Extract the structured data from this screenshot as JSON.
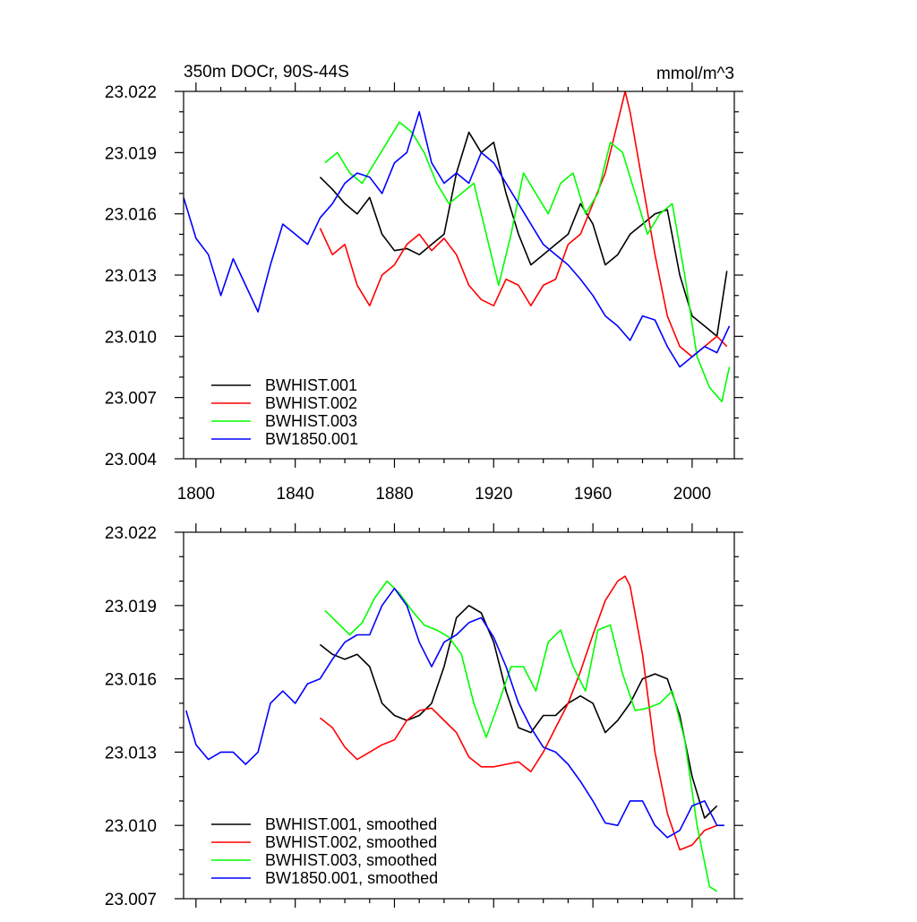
{
  "chart_data": [
    {
      "type": "line",
      "title": "350m DOCr, 90S-44S",
      "units": "mmol/m^3",
      "xlim": [
        1795,
        2017
      ],
      "ylim": [
        23.004,
        23.022
      ],
      "xticks": [
        1800,
        1840,
        1880,
        1920,
        1960,
        2000
      ],
      "yticks": [
        23.004,
        23.007,
        23.01,
        23.013,
        23.016,
        23.019,
        23.022
      ],
      "legend_position": "bottom-left",
      "grid": false,
      "series": [
        {
          "name": "BWHIST.001",
          "color": "#000000",
          "x": [
            1850,
            1855,
            1860,
            1865,
            1870,
            1875,
            1880,
            1885,
            1890,
            1895,
            1900,
            1905,
            1910,
            1915,
            1920,
            1925,
            1930,
            1935,
            1940,
            1945,
            1950,
            1955,
            1960,
            1965,
            1970,
            1975,
            1980,
            1985,
            1990,
            1995,
            2000,
            2005,
            2010,
            2014
          ],
          "y": [
            23.0178,
            23.0172,
            23.0165,
            23.016,
            23.0168,
            23.015,
            23.0142,
            23.0143,
            23.014,
            23.0145,
            23.015,
            23.018,
            23.02,
            23.019,
            23.0195,
            23.017,
            23.015,
            23.0135,
            23.014,
            23.0145,
            23.015,
            23.0165,
            23.0155,
            23.0135,
            23.014,
            23.015,
            23.0155,
            23.016,
            23.0162,
            23.013,
            23.011,
            23.0105,
            23.01,
            23.0132
          ]
        },
        {
          "name": "BWHIST.002",
          "color": "#ff0000",
          "x": [
            1850,
            1855,
            1860,
            1865,
            1870,
            1875,
            1880,
            1885,
            1890,
            1895,
            1900,
            1905,
            1910,
            1915,
            1920,
            1925,
            1930,
            1935,
            1940,
            1945,
            1950,
            1955,
            1960,
            1965,
            1970,
            1973,
            1975,
            1980,
            1985,
            1990,
            1995,
            2000,
            2005,
            2010,
            2014
          ],
          "y": [
            23.0153,
            23.014,
            23.0145,
            23.0125,
            23.0115,
            23.013,
            23.0135,
            23.0145,
            23.015,
            23.0142,
            23.0148,
            23.014,
            23.0125,
            23.0118,
            23.0115,
            23.0128,
            23.0125,
            23.0115,
            23.0125,
            23.0128,
            23.0145,
            23.015,
            23.0165,
            23.018,
            23.0205,
            23.022,
            23.021,
            23.0175,
            23.014,
            23.011,
            23.0095,
            23.009,
            23.0095,
            23.01,
            23.0095
          ]
        },
        {
          "name": "BWHIST.003",
          "color": "#00ff00",
          "x": [
            1852,
            1857,
            1862,
            1867,
            1872,
            1877,
            1882,
            1887,
            1892,
            1897,
            1902,
            1907,
            1912,
            1917,
            1922,
            1927,
            1932,
            1937,
            1942,
            1947,
            1952,
            1957,
            1962,
            1967,
            1972,
            1977,
            1982,
            1987,
            1992,
            1997,
            2002,
            2007,
            2012,
            2015
          ],
          "y": [
            23.0185,
            23.019,
            23.018,
            23.0175,
            23.0185,
            23.0195,
            23.0205,
            23.02,
            23.019,
            23.0175,
            23.0165,
            23.017,
            23.0175,
            23.015,
            23.0125,
            23.015,
            23.018,
            23.017,
            23.016,
            23.0175,
            23.018,
            23.016,
            23.017,
            23.0195,
            23.019,
            23.017,
            23.015,
            23.016,
            23.0165,
            23.013,
            23.009,
            23.0075,
            23.0068,
            23.0085
          ]
        },
        {
          "name": "BW1850.001",
          "color": "#0000ff",
          "x": [
            1795,
            1800,
            1805,
            1810,
            1815,
            1820,
            1825,
            1830,
            1835,
            1840,
            1845,
            1850,
            1855,
            1860,
            1865,
            1870,
            1875,
            1880,
            1885,
            1890,
            1895,
            1900,
            1905,
            1910,
            1915,
            1920,
            1925,
            1930,
            1935,
            1940,
            1945,
            1950,
            1955,
            1960,
            1965,
            1970,
            1975,
            1980,
            1985,
            1990,
            1995,
            2000,
            2005,
            2010,
            2015
          ],
          "y": [
            23.0168,
            23.0148,
            23.014,
            23.012,
            23.0138,
            23.0125,
            23.0112,
            23.0135,
            23.0155,
            23.015,
            23.0145,
            23.0158,
            23.0165,
            23.0175,
            23.018,
            23.0178,
            23.017,
            23.0185,
            23.019,
            23.021,
            23.0185,
            23.0175,
            23.018,
            23.0175,
            23.019,
            23.0185,
            23.0175,
            23.0165,
            23.0155,
            23.0145,
            23.014,
            23.0135,
            23.0128,
            23.012,
            23.011,
            23.0105,
            23.0098,
            23.011,
            23.0108,
            23.0095,
            23.0085,
            23.009,
            23.0095,
            23.0092,
            23.0105
          ]
        }
      ]
    },
    {
      "type": "line",
      "title": "",
      "xlim": [
        1795,
        2017
      ],
      "ylim": [
        23.007,
        23.022
      ],
      "xticks": [
        1800,
        1840,
        1880,
        1920,
        1960,
        2000
      ],
      "yticks": [
        23.007,
        23.01,
        23.013,
        23.016,
        23.019,
        23.022
      ],
      "legend_position": "bottom-left",
      "grid": false,
      "series": [
        {
          "name": "BWHIST.001, smoothed",
          "color": "#000000",
          "x": [
            1850,
            1855,
            1860,
            1865,
            1870,
            1875,
            1880,
            1885,
            1890,
            1895,
            1900,
            1905,
            1910,
            1915,
            1920,
            1925,
            1930,
            1935,
            1940,
            1945,
            1950,
            1955,
            1960,
            1965,
            1970,
            1975,
            1980,
            1985,
            1990,
            1995,
            2000,
            2005,
            2010
          ],
          "y": [
            23.0174,
            23.017,
            23.0168,
            23.017,
            23.0165,
            23.015,
            23.0145,
            23.0143,
            23.0145,
            23.015,
            23.0165,
            23.0185,
            23.019,
            23.0187,
            23.0175,
            23.0155,
            23.014,
            23.0138,
            23.0145,
            23.0145,
            23.015,
            23.0153,
            23.015,
            23.0138,
            23.0143,
            23.015,
            23.016,
            23.0162,
            23.016,
            23.0145,
            23.012,
            23.0103,
            23.0108
          ]
        },
        {
          "name": "BWHIST.002, smoothed",
          "color": "#ff0000",
          "x": [
            1850,
            1855,
            1860,
            1865,
            1870,
            1875,
            1880,
            1885,
            1890,
            1895,
            1900,
            1905,
            1910,
            1915,
            1920,
            1925,
            1930,
            1935,
            1940,
            1945,
            1950,
            1955,
            1960,
            1965,
            1970,
            1973,
            1975,
            1980,
            1985,
            1990,
            1995,
            2000,
            2005,
            2010
          ],
          "y": [
            23.0144,
            23.014,
            23.0132,
            23.0127,
            23.013,
            23.0133,
            23.0135,
            23.0143,
            23.0147,
            23.0148,
            23.0143,
            23.0138,
            23.0128,
            23.0124,
            23.0124,
            23.0125,
            23.0126,
            23.0122,
            23.013,
            23.014,
            23.015,
            23.0163,
            23.0178,
            23.0192,
            23.02,
            23.0202,
            23.0198,
            23.017,
            23.013,
            23.0105,
            23.009,
            23.0092,
            23.0098,
            23.01
          ]
        },
        {
          "name": "BWHIST.003, smoothed",
          "color": "#00ff00",
          "x": [
            1852,
            1857,
            1862,
            1867,
            1872,
            1877,
            1882,
            1887,
            1892,
            1897,
            1902,
            1907,
            1912,
            1917,
            1922,
            1927,
            1932,
            1937,
            1942,
            1947,
            1952,
            1957,
            1962,
            1967,
            1972,
            1977,
            1982,
            1987,
            1992,
            1997,
            2002,
            2007,
            2010
          ],
          "y": [
            23.0188,
            23.0183,
            23.0178,
            23.0183,
            23.0193,
            23.02,
            23.0195,
            23.0188,
            23.0182,
            23.018,
            23.0177,
            23.017,
            23.015,
            23.0136,
            23.015,
            23.0165,
            23.0165,
            23.0155,
            23.0175,
            23.018,
            23.0165,
            23.0155,
            23.018,
            23.0182,
            23.0162,
            23.0147,
            23.0148,
            23.015,
            23.0155,
            23.0135,
            23.01,
            23.0075,
            23.0073
          ]
        },
        {
          "name": "BW1850.001, smoothed",
          "color": "#0000ff",
          "x": [
            1796,
            1800,
            1805,
            1810,
            1815,
            1820,
            1825,
            1830,
            1835,
            1840,
            1845,
            1850,
            1855,
            1860,
            1865,
            1870,
            1875,
            1880,
            1885,
            1890,
            1895,
            1900,
            1905,
            1910,
            1915,
            1920,
            1925,
            1930,
            1935,
            1940,
            1945,
            1950,
            1955,
            1960,
            1965,
            1970,
            1975,
            1980,
            1985,
            1990,
            1995,
            2000,
            2005,
            2010,
            2013
          ],
          "y": [
            23.0147,
            23.0133,
            23.0127,
            23.013,
            23.013,
            23.0125,
            23.013,
            23.015,
            23.0155,
            23.015,
            23.0158,
            23.016,
            23.0168,
            23.0175,
            23.0178,
            23.0178,
            23.019,
            23.0197,
            23.019,
            23.0175,
            23.0165,
            23.0175,
            23.0178,
            23.0183,
            23.0185,
            23.0177,
            23.0165,
            23.015,
            23.014,
            23.0132,
            23.013,
            23.0125,
            23.0118,
            23.011,
            23.0101,
            23.01,
            23.011,
            23.011,
            23.01,
            23.0095,
            23.0098,
            23.0108,
            23.011,
            23.01,
            23.01
          ]
        }
      ]
    }
  ]
}
